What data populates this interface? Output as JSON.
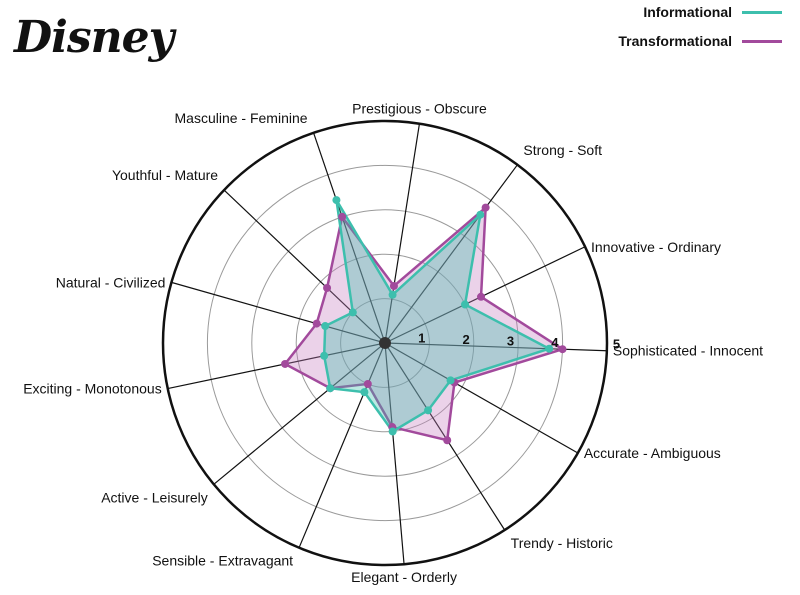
{
  "brand": {
    "logo_text": "Disney"
  },
  "colors": {
    "informational": "#3dbfad",
    "transformational": "#a24a9c",
    "informational_fill": "#3dbfad",
    "transformational_fill": "#c67fbf"
  },
  "legend": {
    "informational_label": "Informational",
    "transformational_label": "Transformational"
  },
  "chart_data": {
    "type": "radar",
    "categories": [
      "Sophisticated - Innocent",
      "Innovative - Ordinary",
      "Strong - Soft",
      "Prestigious - Obscure",
      "Masculine - Feminine",
      "Youthful - Mature",
      "Natural - Civilized",
      "Exciting - Monotonous",
      "Active - Leisurely",
      "Sensible - Extravagant",
      "Elegant - Orderly",
      "Trendy - Historic",
      "Accurate - Ambiguous"
    ],
    "series": [
      {
        "name": "Informational",
        "values": [
          3.7,
          2.0,
          3.6,
          1.1,
          3.4,
          1.0,
          1.4,
          1.4,
          1.6,
          1.2,
          2.0,
          1.8,
          1.7
        ]
      },
      {
        "name": "Transformational",
        "values": [
          4.0,
          2.4,
          3.8,
          1.3,
          3.0,
          1.8,
          1.6,
          2.3,
          1.6,
          1.0,
          1.9,
          2.6,
          1.8
        ]
      }
    ],
    "rlim": [
      0,
      5
    ],
    "ticks": [
      "1",
      "2",
      "3",
      "4",
      "5"
    ],
    "grid": true,
    "legend_position": "top-right"
  }
}
